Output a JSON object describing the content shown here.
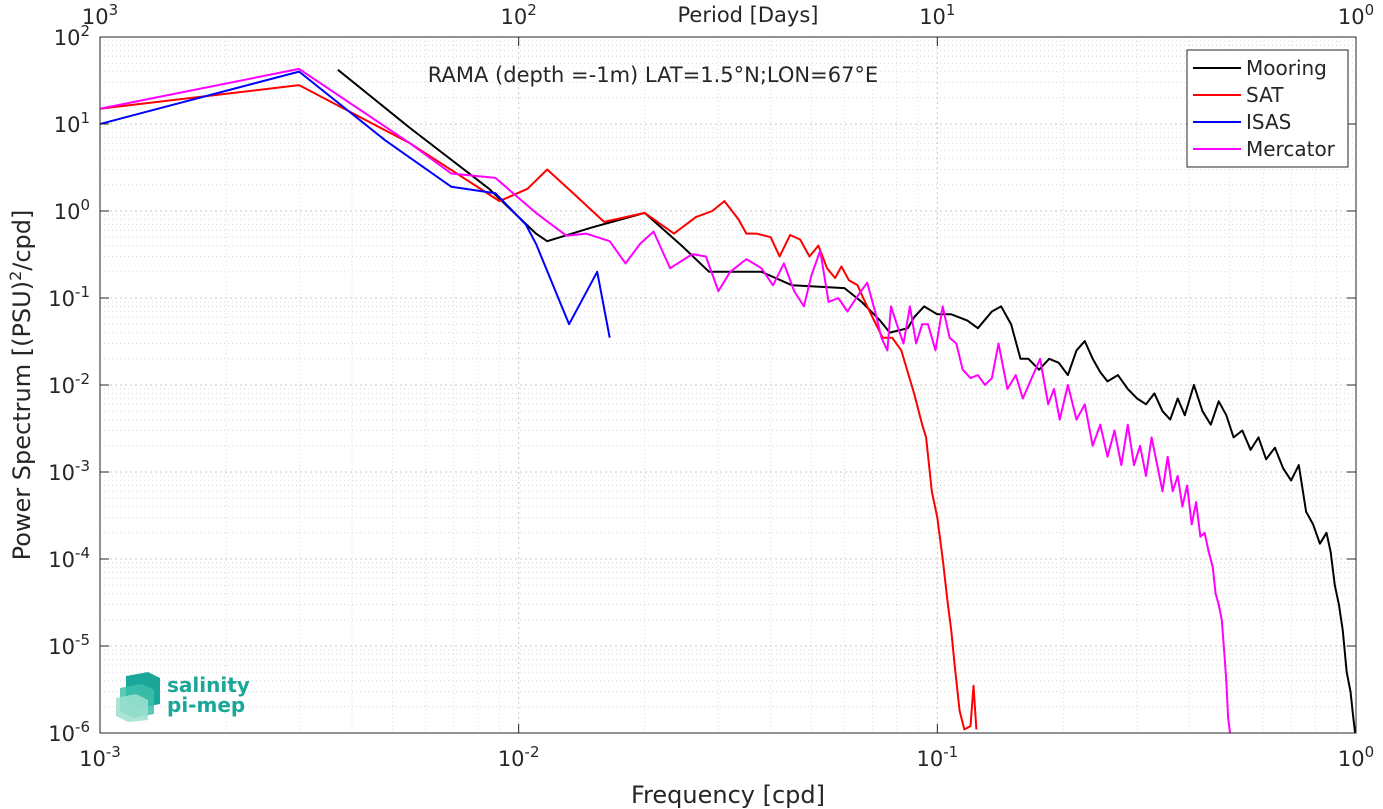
{
  "chart_data": {
    "type": "line",
    "title": "RAMA (depth =-1m) LAT=1.5°N;LON=67°E",
    "xlabel": "Frequency [cpd]",
    "ylabel": "Power Spectrum [(PSU)²/cpd]",
    "ylabel_parts": {
      "main": "Power Spectrum [(PSU)",
      "sup": "2",
      "tail": "/cpd]"
    },
    "top_xlabel": "Period [Days]",
    "x_scale": "log",
    "y_scale": "log",
    "xlim": [
      0.001,
      1
    ],
    "ylim": [
      1e-06,
      100
    ],
    "grid": true,
    "minor_grid": true,
    "legend_position": "top-right",
    "x_ticks": [
      {
        "value": 0.001,
        "base": "10",
        "exp": "-3"
      },
      {
        "value": 0.01,
        "base": "10",
        "exp": "-2"
      },
      {
        "value": 0.1,
        "base": "10",
        "exp": "-1"
      },
      {
        "value": 1,
        "base": "10",
        "exp": "0"
      }
    ],
    "top_x_ticks": [
      {
        "value": 0.001,
        "base": "10",
        "exp": "3"
      },
      {
        "value": 0.01,
        "base": "10",
        "exp": "2"
      },
      {
        "value": 0.1,
        "base": "10",
        "exp": "1"
      },
      {
        "value": 1,
        "base": "10",
        "exp": "0"
      }
    ],
    "y_ticks": [
      {
        "value": 100,
        "base": "10",
        "exp": "2"
      },
      {
        "value": 10,
        "base": "10",
        "exp": "1"
      },
      {
        "value": 1,
        "base": "10",
        "exp": "0"
      },
      {
        "value": 0.1,
        "base": "10",
        "exp": "-1"
      },
      {
        "value": 0.01,
        "base": "10",
        "exp": "-2"
      },
      {
        "value": 0.001,
        "base": "10",
        "exp": "-3"
      },
      {
        "value": 0.0001,
        "base": "10",
        "exp": "-4"
      },
      {
        "value": 1e-05,
        "base": "10",
        "exp": "-5"
      },
      {
        "value": 1e-06,
        "base": "10",
        "exp": "-6"
      }
    ],
    "series": [
      {
        "name": "Mooring",
        "color": "#000000",
        "points": [
          [
            0.0037,
            42
          ],
          [
            0.0055,
            9
          ],
          [
            0.0085,
            1.8
          ],
          [
            0.011,
            0.55
          ],
          [
            0.0117,
            0.45
          ],
          [
            0.015,
            0.65
          ],
          [
            0.02,
            0.95
          ],
          [
            0.0245,
            0.4
          ],
          [
            0.0285,
            0.2
          ],
          [
            0.033,
            0.2
          ],
          [
            0.038,
            0.2
          ],
          [
            0.045,
            0.14
          ],
          [
            0.06,
            0.13
          ],
          [
            0.066,
            0.09
          ],
          [
            0.073,
            0.055
          ],
          [
            0.077,
            0.04
          ],
          [
            0.085,
            0.045
          ],
          [
            0.088,
            0.06
          ],
          [
            0.093,
            0.08
          ],
          [
            0.1,
            0.065
          ],
          [
            0.108,
            0.065
          ],
          [
            0.118,
            0.055
          ],
          [
            0.125,
            0.045
          ],
          [
            0.135,
            0.07
          ],
          [
            0.142,
            0.08
          ],
          [
            0.15,
            0.05
          ],
          [
            0.158,
            0.02
          ],
          [
            0.165,
            0.02
          ],
          [
            0.175,
            0.015
          ],
          [
            0.185,
            0.02
          ],
          [
            0.195,
            0.018
          ],
          [
            0.205,
            0.013
          ],
          [
            0.215,
            0.025
          ],
          [
            0.225,
            0.032
          ],
          [
            0.235,
            0.02
          ],
          [
            0.245,
            0.014
          ],
          [
            0.255,
            0.011
          ],
          [
            0.27,
            0.013
          ],
          [
            0.285,
            0.009
          ],
          [
            0.3,
            0.007
          ],
          [
            0.315,
            0.006
          ],
          [
            0.33,
            0.008
          ],
          [
            0.345,
            0.005
          ],
          [
            0.36,
            0.004
          ],
          [
            0.375,
            0.007
          ],
          [
            0.39,
            0.0045
          ],
          [
            0.41,
            0.01
          ],
          [
            0.43,
            0.005
          ],
          [
            0.45,
            0.0035
          ],
          [
            0.47,
            0.0065
          ],
          [
            0.49,
            0.0045
          ],
          [
            0.51,
            0.0025
          ],
          [
            0.535,
            0.003
          ],
          [
            0.56,
            0.0018
          ],
          [
            0.585,
            0.0025
          ],
          [
            0.61,
            0.0014
          ],
          [
            0.64,
            0.0019
          ],
          [
            0.67,
            0.0011
          ],
          [
            0.7,
            0.0008
          ],
          [
            0.73,
            0.0012
          ],
          [
            0.76,
            0.00035
          ],
          [
            0.79,
            0.00025
          ],
          [
            0.82,
            0.00015
          ],
          [
            0.85,
            0.0002
          ],
          [
            0.87,
            0.00012
          ],
          [
            0.89,
            5e-05
          ],
          [
            0.91,
            3e-05
          ],
          [
            0.93,
            1.5e-05
          ],
          [
            0.95,
            5e-06
          ],
          [
            0.97,
            3e-06
          ],
          [
            0.985,
            1.5e-06
          ],
          [
            0.995,
            1e-06
          ]
        ]
      },
      {
        "name": "SAT",
        "color": "#ff0000",
        "points": [
          [
            0.001,
            15
          ],
          [
            0.00299,
            28
          ],
          [
            0.0055,
            6
          ],
          [
            0.009,
            1.3
          ],
          [
            0.0105,
            1.8
          ],
          [
            0.0117,
            3.0
          ],
          [
            0.0135,
            1.6
          ],
          [
            0.016,
            0.75
          ],
          [
            0.02,
            0.95
          ],
          [
            0.0235,
            0.55
          ],
          [
            0.0265,
            0.85
          ],
          [
            0.029,
            1.0
          ],
          [
            0.031,
            1.3
          ],
          [
            0.0335,
            0.8
          ],
          [
            0.035,
            0.55
          ],
          [
            0.037,
            0.55
          ],
          [
            0.04,
            0.5
          ],
          [
            0.042,
            0.3
          ],
          [
            0.0445,
            0.53
          ],
          [
            0.047,
            0.47
          ],
          [
            0.0495,
            0.3
          ],
          [
            0.052,
            0.4
          ],
          [
            0.0545,
            0.22
          ],
          [
            0.057,
            0.17
          ],
          [
            0.059,
            0.23
          ],
          [
            0.0615,
            0.16
          ],
          [
            0.0645,
            0.14
          ],
          [
            0.0665,
            0.1
          ],
          [
            0.07,
            0.06
          ],
          [
            0.074,
            0.035
          ],
          [
            0.078,
            0.035
          ],
          [
            0.082,
            0.025
          ],
          [
            0.085,
            0.014
          ],
          [
            0.088,
            0.008
          ],
          [
            0.092,
            0.0035
          ],
          [
            0.094,
            0.0025
          ],
          [
            0.097,
            0.0006
          ],
          [
            0.1,
            0.0003
          ],
          [
            0.103,
            0.0001
          ],
          [
            0.106,
            3e-05
          ],
          [
            0.108,
            1.5e-05
          ],
          [
            0.11,
            6e-06
          ],
          [
            0.113,
            1.8e-06
          ],
          [
            0.116,
            1.1e-06
          ],
          [
            0.12,
            1.2e-06
          ],
          [
            0.122,
            3.5e-06
          ],
          [
            0.124,
            1.1e-06
          ]
        ]
      },
      {
        "name": "ISAS",
        "color": "#0000ff",
        "points": [
          [
            0.001,
            10
          ],
          [
            0.00299,
            40
          ],
          [
            0.0048,
            6.5
          ],
          [
            0.0069,
            1.9
          ],
          [
            0.0088,
            1.6
          ],
          [
            0.0104,
            0.7
          ],
          [
            0.011,
            0.42
          ],
          [
            0.0132,
            0.05
          ],
          [
            0.0154,
            0.2
          ],
          [
            0.0165,
            0.035
          ]
        ]
      },
      {
        "name": "Mercator",
        "color": "#ff00ff",
        "points": [
          [
            0.001,
            15
          ],
          [
            0.00299,
            43
          ],
          [
            0.0055,
            6
          ],
          [
            0.0069,
            2.7
          ],
          [
            0.0088,
            2.4
          ],
          [
            0.011,
            0.95
          ],
          [
            0.013,
            0.52
          ],
          [
            0.0145,
            0.55
          ],
          [
            0.0165,
            0.45
          ],
          [
            0.018,
            0.25
          ],
          [
            0.0195,
            0.42
          ],
          [
            0.021,
            0.58
          ],
          [
            0.023,
            0.22
          ],
          [
            0.026,
            0.32
          ],
          [
            0.028,
            0.3
          ],
          [
            0.03,
            0.12
          ],
          [
            0.032,
            0.2
          ],
          [
            0.035,
            0.28
          ],
          [
            0.038,
            0.22
          ],
          [
            0.0405,
            0.14
          ],
          [
            0.043,
            0.25
          ],
          [
            0.0455,
            0.12
          ],
          [
            0.048,
            0.08
          ],
          [
            0.05,
            0.18
          ],
          [
            0.0525,
            0.35
          ],
          [
            0.055,
            0.09
          ],
          [
            0.058,
            0.1
          ],
          [
            0.061,
            0.07
          ],
          [
            0.064,
            0.1
          ],
          [
            0.068,
            0.15
          ],
          [
            0.071,
            0.07
          ],
          [
            0.0735,
            0.035
          ],
          [
            0.076,
            0.025
          ],
          [
            0.0775,
            0.08
          ],
          [
            0.08,
            0.05
          ],
          [
            0.083,
            0.03
          ],
          [
            0.086,
            0.08
          ],
          [
            0.089,
            0.03
          ],
          [
            0.092,
            0.05
          ],
          [
            0.095,
            0.05
          ],
          [
            0.099,
            0.025
          ],
          [
            0.103,
            0.08
          ],
          [
            0.107,
            0.035
          ],
          [
            0.111,
            0.03
          ],
          [
            0.115,
            0.015
          ],
          [
            0.12,
            0.012
          ],
          [
            0.125,
            0.013
          ],
          [
            0.13,
            0.01
          ],
          [
            0.135,
            0.012
          ],
          [
            0.14,
            0.03
          ],
          [
            0.147,
            0.009
          ],
          [
            0.154,
            0.013
          ],
          [
            0.16,
            0.007
          ],
          [
            0.168,
            0.012
          ],
          [
            0.176,
            0.02
          ],
          [
            0.184,
            0.006
          ],
          [
            0.19,
            0.009
          ],
          [
            0.196,
            0.004
          ],
          [
            0.205,
            0.01
          ],
          [
            0.215,
            0.004
          ],
          [
            0.225,
            0.006
          ],
          [
            0.235,
            0.002
          ],
          [
            0.245,
            0.0035
          ],
          [
            0.255,
            0.0015
          ],
          [
            0.265,
            0.003
          ],
          [
            0.275,
            0.0012
          ],
          [
            0.285,
            0.0035
          ],
          [
            0.295,
            0.0012
          ],
          [
            0.305,
            0.002
          ],
          [
            0.315,
            0.0009
          ],
          [
            0.325,
            0.0025
          ],
          [
            0.335,
            0.0012
          ],
          [
            0.345,
            0.0006
          ],
          [
            0.355,
            0.0015
          ],
          [
            0.365,
            0.0006
          ],
          [
            0.375,
            0.0009
          ],
          [
            0.385,
            0.0004
          ],
          [
            0.395,
            0.0007
          ],
          [
            0.405,
            0.00025
          ],
          [
            0.415,
            0.00045
          ],
          [
            0.425,
            0.00018
          ],
          [
            0.435,
            0.0002
          ],
          [
            0.445,
            0.00012
          ],
          [
            0.455,
            8e-05
          ],
          [
            0.462,
            4e-05
          ],
          [
            0.47,
            3e-05
          ],
          [
            0.478,
            2e-05
          ],
          [
            0.485,
            8e-06
          ],
          [
            0.49,
            4e-06
          ],
          [
            0.495,
            1.5e-06
          ],
          [
            0.5,
            1e-06
          ]
        ]
      }
    ]
  },
  "logo": {
    "line1": "salinity",
    "line2": "pi-mep",
    "color": "#1aa79a"
  }
}
